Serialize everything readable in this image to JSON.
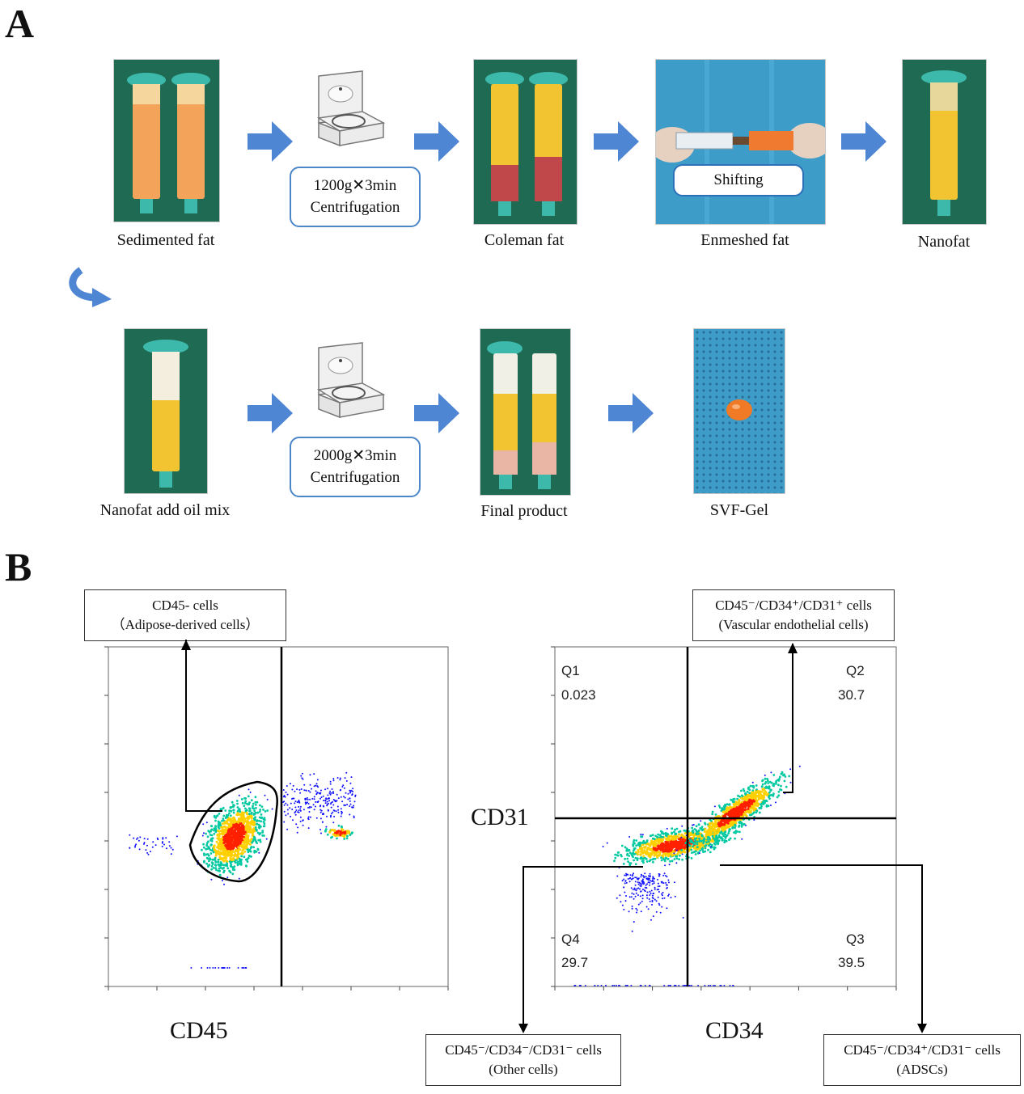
{
  "panel_a": {
    "letter": "A",
    "steps_row1": [
      {
        "caption": "Sedimented fat"
      },
      {
        "caption": "Coleman fat"
      },
      {
        "caption": "Enmeshed fat",
        "overlay": "Shifting"
      },
      {
        "caption": "Nanofat"
      }
    ],
    "centrifuge1": {
      "line1": "1200g",
      "times": "✕",
      "line1b": "3min",
      "line2": "Centrifugation"
    },
    "steps_row2": [
      {
        "caption": "Nanofat add oil mix"
      },
      {
        "caption": "Final product"
      },
      {
        "caption": "SVF-Gel"
      }
    ],
    "centrifuge2": {
      "line1": "2000g",
      "times": "✕",
      "line1b": "3min",
      "line2": "Centrifugation"
    },
    "colors": {
      "arrow": "#4f86d4",
      "syringe_cap": "#3cb9ab",
      "fat_orange": "#f3a35a",
      "fat_yellow": "#f2c431",
      "drape_green": "#1e6b55",
      "drape_blue": "#3d9cc8"
    }
  },
  "panel_b": {
    "letter": "B",
    "plot1": {
      "xlabel": "CD45",
      "gate_label_line1": "CD45- cells",
      "gate_label_line2": "（Adipose-derived cells）"
    },
    "plot2": {
      "xlabel": "CD34",
      "ylabel": "CD31",
      "quadrants": [
        {
          "name": "Q1",
          "value": "0.023"
        },
        {
          "name": "Q2",
          "value": "30.7"
        },
        {
          "name": "Q3",
          "value": "39.5"
        },
        {
          "name": "Q4",
          "value": "29.7"
        }
      ],
      "label_top_line1": "CD45⁻/CD34⁺/CD31⁺ cells",
      "label_top_line2": "(Vascular endothelial cells)",
      "label_bl_line1": "CD45⁻/CD34⁻/CD31⁻ cells",
      "label_bl_line2": "(Other cells)",
      "label_br_line1": "CD45⁻/CD34⁺/CD31⁻ cells",
      "label_br_line2": "(ADSCs)"
    },
    "colors": {
      "dots_low": "#1010ff",
      "dots_mid": "#00c8a0",
      "dots_high": "#ffd000",
      "dots_peak": "#ff2000"
    }
  }
}
